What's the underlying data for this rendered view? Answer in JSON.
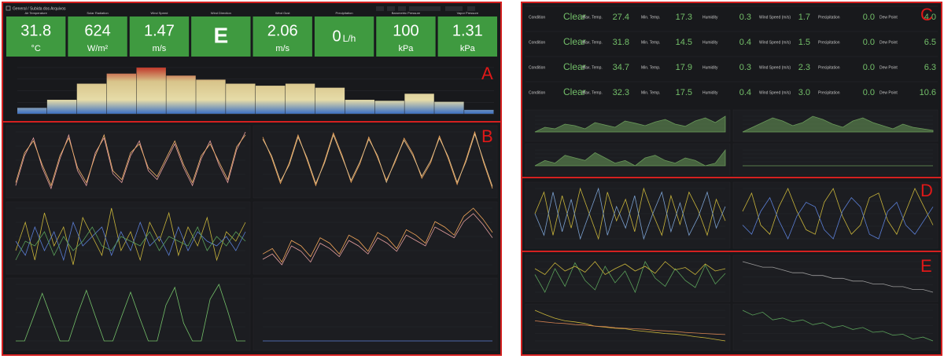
{
  "header": {
    "breadcrumb": "General / Subida dos Arquivos"
  },
  "section_labels": [
    "A",
    "B",
    "C",
    "D",
    "E"
  ],
  "stats": [
    {
      "title": "Air Temperature",
      "value": "31.8",
      "unit": "°C"
    },
    {
      "title": "Solar Radiation",
      "value": "624",
      "unit": "W/m²"
    },
    {
      "title": "Wind Speed",
      "value": "1.47",
      "unit": "m/s"
    },
    {
      "title": "Wind Direction",
      "value": "E"
    },
    {
      "title": "Wind Gust",
      "value": "2.06",
      "unit": "m/s"
    },
    {
      "title": "Precipitation",
      "value": "0",
      "unit": "L/h",
      "unit_position": "inline"
    },
    {
      "title": "Barometric Pressure",
      "value": "100",
      "unit": "kPa"
    },
    {
      "title": "Vapor Pressure",
      "value": "1.31",
      "unit": "kPa"
    }
  ],
  "histogram": {
    "values": [
      6,
      14,
      30,
      40,
      46,
      38,
      34,
      30,
      28,
      30,
      26,
      14,
      13,
      20,
      12,
      4
    ]
  },
  "weather_labels": [
    "Condition",
    "Max. Temp.",
    "Min. Temp.",
    "Humidity",
    "Wind Speed (m/s)",
    "Precipitation",
    "Dew Point"
  ],
  "weather_rows": [
    {
      "condition": "Clear",
      "values": [
        "27.4",
        "17.3",
        "0.3",
        "1.7",
        "0.0",
        "4.0"
      ]
    },
    {
      "condition": "Clear",
      "values": [
        "31.8",
        "14.5",
        "0.4",
        "1.5",
        "0.0",
        "6.5"
      ]
    },
    {
      "condition": "Clear",
      "values": [
        "34.7",
        "17.9",
        "0.3",
        "2.3",
        "0.0",
        "6.3"
      ]
    },
    {
      "condition": "Clear",
      "values": [
        "32.3",
        "17.5",
        "0.4",
        "3.0",
        "0.0",
        "10.6"
      ]
    }
  ],
  "section_b_charts": [
    {
      "series": [
        {
          "color": "#e8a0a0",
          "values": [
            12,
            22,
            28,
            18,
            11,
            21,
            29,
            17,
            12,
            23,
            28,
            16,
            13,
            22,
            27,
            17,
            14,
            20,
            26,
            18,
            12,
            21,
            27,
            19,
            13,
            24,
            30
          ]
        },
        {
          "color": "#f2b36b",
          "values": [
            13,
            23,
            27,
            19,
            12,
            22,
            28,
            18,
            13,
            22,
            29,
            17,
            14,
            23,
            26,
            18,
            15,
            21,
            27,
            19,
            13,
            22,
            26,
            20,
            14,
            25,
            29
          ]
        }
      ]
    },
    {
      "series": [
        {
          "color": "#f2a65a",
          "values": [
            80,
            60,
            35,
            55,
            82,
            58,
            33,
            57,
            84,
            62,
            36,
            54,
            80,
            60,
            38,
            56,
            79,
            64,
            40,
            55,
            81,
            59,
            34,
            58,
            85,
            55,
            30
          ]
        },
        {
          "color": "#e8c48f",
          "values": [
            78,
            62,
            37,
            53,
            80,
            60,
            35,
            55,
            82,
            60,
            38,
            56,
            78,
            62,
            36,
            58,
            77,
            62,
            42,
            57,
            79,
            61,
            36,
            56,
            83,
            57,
            32
          ]
        }
      ]
    },
    {
      "series": [
        {
          "color": "#c8b43a",
          "values": [
            40,
            70,
            30,
            80,
            45,
            65,
            25,
            75,
            55,
            35,
            85,
            40,
            60,
            30,
            70,
            50,
            80,
            35,
            65,
            45,
            75,
            30,
            60,
            50,
            70
          ]
        },
        {
          "color": "#5b7fd6",
          "values": [
            50,
            35,
            65,
            40,
            60,
            30,
            70,
            45,
            55,
            65,
            35,
            60,
            40,
            70,
            45,
            55,
            35,
            65,
            40,
            60,
            50,
            45,
            55,
            40,
            60
          ]
        },
        {
          "color": "#5aa05a",
          "values": [
            30,
            50,
            45,
            60,
            35,
            55,
            40,
            50,
            65,
            45,
            40,
            55,
            50,
            45,
            60,
            40,
            55,
            50,
            45,
            65,
            40,
            55,
            45,
            60,
            50
          ]
        }
      ]
    },
    {
      "series": [
        {
          "color": "#f2a65a",
          "values": [
            50,
            52,
            47,
            55,
            53,
            49,
            56,
            54,
            50,
            57,
            55,
            51,
            58,
            56,
            52,
            59,
            57,
            54,
            62,
            60,
            57,
            64,
            67,
            63,
            58
          ]
        },
        {
          "color": "#e6a0a0",
          "values": [
            48,
            50,
            46,
            53,
            51,
            47,
            54,
            52,
            49,
            55,
            53,
            50,
            56,
            54,
            51,
            57,
            55,
            53,
            60,
            58,
            56,
            62,
            65,
            61,
            56
          ]
        }
      ]
    },
    {
      "series": [
        {
          "color": "#73bf69",
          "values": [
            0,
            0,
            40,
            80,
            40,
            0,
            0,
            45,
            85,
            42,
            0,
            0,
            42,
            82,
            40,
            0,
            0,
            60,
            90,
            30,
            0,
            0,
            70,
            95,
            50,
            0,
            0
          ]
        }
      ]
    },
    {
      "series": [
        {
          "color": "#5b7fd6",
          "values": [
            0,
            0,
            0,
            0,
            0,
            0,
            0,
            0,
            0,
            0
          ]
        }
      ]
    }
  ],
  "section_c_charts": [
    {
      "area": true,
      "series": [
        {
          "color": "#6a9a5a",
          "values": [
            20,
            35,
            30,
            45,
            40,
            30,
            50,
            42,
            35,
            55,
            48,
            40,
            52,
            60,
            45,
            38,
            55,
            65,
            50,
            70
          ]
        }
      ]
    },
    {
      "area": true,
      "series": [
        {
          "color": "#6a9a5a",
          "values": [
            10,
            25,
            40,
            55,
            45,
            30,
            40,
            60,
            50,
            35,
            25,
            45,
            55,
            40,
            30,
            20,
            35,
            25,
            20,
            15
          ]
        }
      ]
    },
    {
      "area": true,
      "series": [
        {
          "color": "#6a9a5a",
          "values": [
            30,
            40,
            35,
            50,
            45,
            40,
            55,
            45,
            35,
            40,
            30,
            45,
            50,
            40,
            35,
            45,
            40,
            30,
            35,
            60
          ]
        }
      ]
    },
    {
      "area": true,
      "series": [
        {
          "color": "#6a9a5a",
          "values": [
            0,
            0,
            0,
            0,
            0,
            0,
            0,
            0,
            0,
            0
          ]
        }
      ]
    }
  ],
  "section_d_charts": [
    {
      "series": [
        {
          "color": "#c8b43a",
          "values": [
            50,
            80,
            20,
            75,
            30,
            85,
            50,
            15,
            80,
            40,
            70,
            25,
            85,
            50,
            20,
            75,
            35,
            80,
            55,
            20,
            70,
            40
          ]
        },
        {
          "color": "#7aa0d0",
          "values": [
            50,
            20,
            80,
            25,
            70,
            15,
            50,
            85,
            20,
            60,
            30,
            75,
            15,
            50,
            80,
            25,
            65,
            20,
            45,
            80,
            30,
            60
          ]
        }
      ]
    },
    {
      "series": [
        {
          "color": "#c8b43a",
          "values": [
            55,
            75,
            40,
            30,
            60,
            80,
            55,
            35,
            30,
            65,
            80,
            50,
            30,
            40,
            70,
            75,
            45,
            30,
            55,
            80,
            60,
            40
          ]
        },
        {
          "color": "#5b7fd6",
          "values": [
            40,
            30,
            55,
            70,
            45,
            25,
            50,
            65,
            60,
            35,
            25,
            55,
            70,
            60,
            30,
            25,
            55,
            65,
            40,
            30,
            45,
            60
          ]
        }
      ]
    }
  ],
  "section_e_charts": [
    {
      "series": [
        {
          "color": "#5aa05a",
          "values": [
            55,
            40,
            60,
            45,
            65,
            50,
            42,
            62,
            48,
            58,
            40,
            66,
            52,
            45,
            60,
            50,
            44,
            63,
            47,
            56
          ]
        },
        {
          "color": "#c8b43a",
          "values": [
            60,
            55,
            65,
            58,
            62,
            57,
            66,
            55,
            60,
            64,
            58,
            62,
            56,
            66,
            59,
            61,
            55,
            64,
            58,
            60
          ]
        }
      ]
    },
    {
      "series": [
        {
          "color": "#9a9a9a",
          "values": [
            60,
            59,
            58,
            58,
            57,
            56,
            56,
            55,
            55,
            54,
            54,
            53,
            53,
            52,
            52,
            51,
            51,
            50,
            50,
            49
          ]
        }
      ]
    },
    {
      "series": [
        {
          "color": "#c8b43a",
          "values": [
            80,
            72,
            65,
            60,
            58,
            55,
            50,
            48,
            46,
            45,
            42,
            40,
            38,
            36,
            35,
            33,
            30,
            28,
            25,
            22
          ]
        },
        {
          "color": "#d08050",
          "values": [
            60,
            58,
            56,
            55,
            53,
            52,
            50,
            49,
            47,
            46,
            45,
            44,
            42,
            41,
            40,
            38,
            37,
            36,
            35,
            34
          ]
        }
      ]
    },
    {
      "series": [
        {
          "color": "#5aa05a",
          "values": [
            70,
            65,
            68,
            60,
            62,
            58,
            60,
            55,
            57,
            52,
            54,
            50,
            52,
            47,
            48,
            44,
            45,
            40,
            42,
            38
          ]
        }
      ]
    }
  ]
}
